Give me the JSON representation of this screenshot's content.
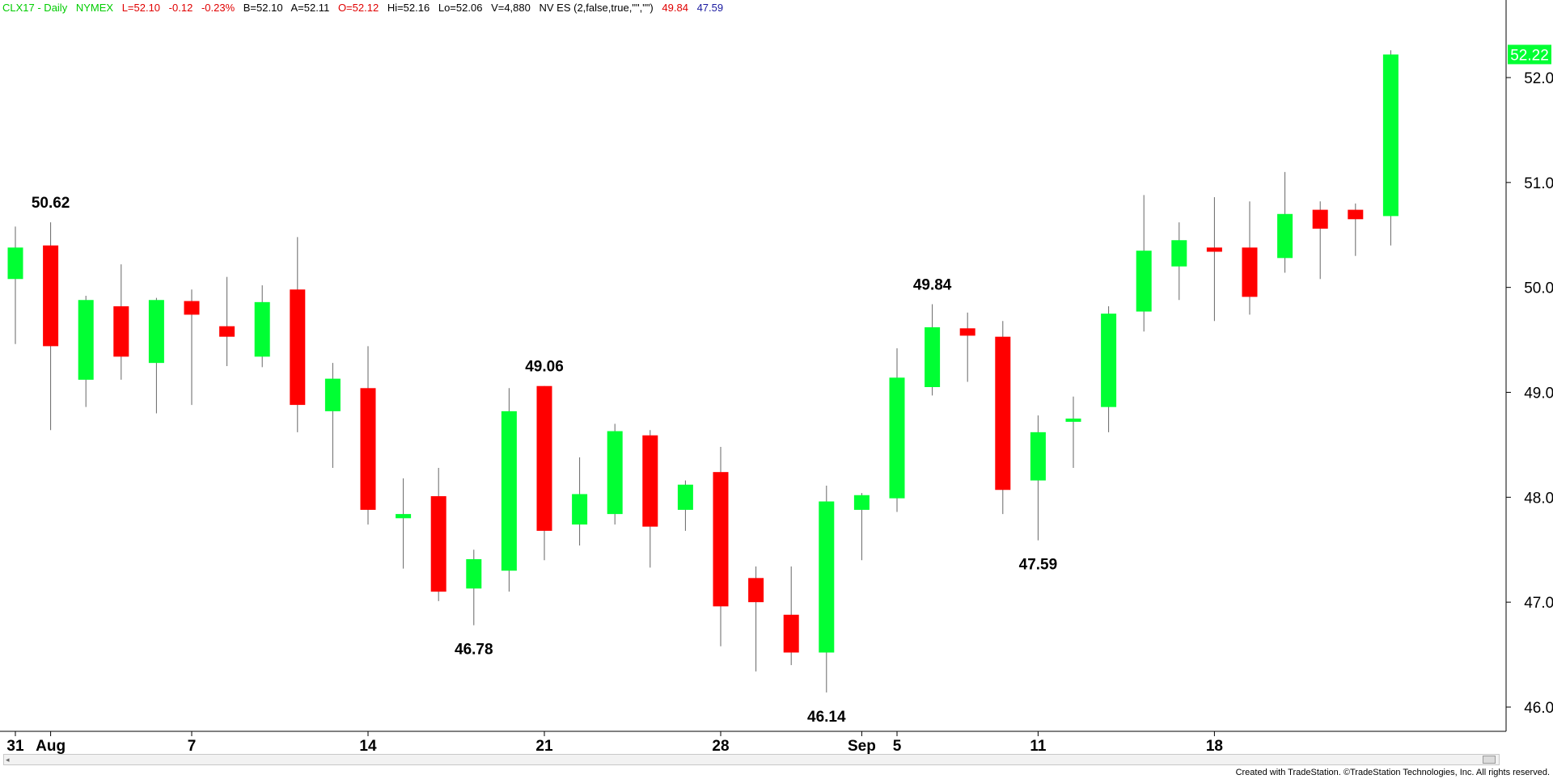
{
  "header": {
    "symbol": "CLX17 - Daily",
    "exchange": "NYMEX",
    "last": "L=52.10",
    "change": "-0.12",
    "change_pct": "-0.23%",
    "bid": "B=52.10",
    "ask": "A=52.11",
    "open": "O=52.12",
    "high": "Hi=52.16",
    "low": "Lo=52.06",
    "volume": "V=4,880",
    "indicator": "NV ES (2,false,true,\"\",\"\")",
    "ind_val1": "49.84",
    "ind_val2": "47.59"
  },
  "footer": "Created with TradeStation. ©TradeStation Technologies, Inc. All rights reserved.",
  "colors": {
    "up": "#00ff33",
    "down": "#ff0000",
    "last_price_bg": "#00ff33"
  },
  "chart_data": {
    "type": "candlestick",
    "ylim": [
      45.8,
      53.0
    ],
    "y_ticks": [
      "46.00",
      "47.00",
      "48.00",
      "49.00",
      "50.00",
      "51.00",
      "52.00"
    ],
    "last_price_label": "52.22",
    "x_tick_labels": [
      "31",
      "Aug",
      "7",
      "14",
      "21",
      "28",
      "Sep",
      "5",
      "11",
      "18"
    ],
    "candles": [
      {
        "o": 50.08,
        "h": 50.58,
        "l": 49.46,
        "c": 50.38
      },
      {
        "o": 50.4,
        "h": 50.62,
        "l": 48.64,
        "c": 49.44
      },
      {
        "o": 49.12,
        "h": 49.92,
        "l": 48.86,
        "c": 49.88
      },
      {
        "o": 49.82,
        "h": 50.22,
        "l": 49.12,
        "c": 49.34
      },
      {
        "o": 49.28,
        "h": 49.9,
        "l": 48.8,
        "c": 49.88
      },
      {
        "o": 49.87,
        "h": 49.98,
        "l": 48.88,
        "c": 49.74
      },
      {
        "o": 49.63,
        "h": 50.1,
        "l": 49.25,
        "c": 49.53
      },
      {
        "o": 49.34,
        "h": 50.02,
        "l": 49.24,
        "c": 49.86
      },
      {
        "o": 49.98,
        "h": 50.48,
        "l": 48.62,
        "c": 48.88
      },
      {
        "o": 48.82,
        "h": 49.28,
        "l": 48.28,
        "c": 49.13
      },
      {
        "o": 49.04,
        "h": 49.44,
        "l": 47.74,
        "c": 47.88
      },
      {
        "o": 47.8,
        "h": 48.18,
        "l": 47.32,
        "c": 47.84
      },
      {
        "o": 48.01,
        "h": 48.28,
        "l": 47.01,
        "c": 47.1
      },
      {
        "o": 47.13,
        "h": 47.5,
        "l": 46.78,
        "c": 47.41
      },
      {
        "o": 47.3,
        "h": 49.04,
        "l": 47.1,
        "c": 48.82
      },
      {
        "o": 49.06,
        "h": 49.06,
        "l": 47.4,
        "c": 47.68
      },
      {
        "o": 47.74,
        "h": 48.38,
        "l": 47.54,
        "c": 48.03
      },
      {
        "o": 47.84,
        "h": 48.7,
        "l": 47.74,
        "c": 48.63
      },
      {
        "o": 48.59,
        "h": 48.64,
        "l": 47.33,
        "c": 47.72
      },
      {
        "o": 47.88,
        "h": 48.16,
        "l": 47.68,
        "c": 48.12
      },
      {
        "o": 48.24,
        "h": 48.48,
        "l": 46.58,
        "c": 46.96
      },
      {
        "o": 47.23,
        "h": 47.34,
        "l": 46.34,
        "c": 47.0
      },
      {
        "o": 46.88,
        "h": 47.34,
        "l": 46.4,
        "c": 46.52
      },
      {
        "o": 46.52,
        "h": 48.11,
        "l": 46.14,
        "c": 47.96
      },
      {
        "o": 47.88,
        "h": 48.04,
        "l": 47.4,
        "c": 48.02
      },
      {
        "o": 47.99,
        "h": 49.42,
        "l": 47.86,
        "c": 49.14
      },
      {
        "o": 49.05,
        "h": 49.84,
        "l": 48.97,
        "c": 49.62
      },
      {
        "o": 49.61,
        "h": 49.76,
        "l": 49.1,
        "c": 49.54
      },
      {
        "o": 49.53,
        "h": 49.68,
        "l": 47.84,
        "c": 48.07
      },
      {
        "o": 48.16,
        "h": 48.78,
        "l": 47.59,
        "c": 48.62
      },
      {
        "o": 48.72,
        "h": 48.96,
        "l": 48.28,
        "c": 48.75
      },
      {
        "o": 48.86,
        "h": 49.82,
        "l": 48.62,
        "c": 49.75
      },
      {
        "o": 49.77,
        "h": 50.88,
        "l": 49.58,
        "c": 50.35
      },
      {
        "o": 50.2,
        "h": 50.62,
        "l": 49.88,
        "c": 50.45
      },
      {
        "o": 50.38,
        "h": 50.86,
        "l": 49.68,
        "c": 50.34
      },
      {
        "o": 50.38,
        "h": 50.82,
        "l": 49.74,
        "c": 49.91
      },
      {
        "o": 50.28,
        "h": 51.1,
        "l": 50.14,
        "c": 50.7
      },
      {
        "o": 50.74,
        "h": 50.82,
        "l": 50.08,
        "c": 50.56
      },
      {
        "o": 50.74,
        "h": 50.8,
        "l": 50.3,
        "c": 50.65
      },
      {
        "o": 50.68,
        "h": 52.26,
        "l": 50.4,
        "c": 52.22
      }
    ],
    "x_tick_candle_index": [
      0,
      1,
      5,
      10,
      15,
      20,
      24,
      25,
      29,
      34
    ],
    "annotations": [
      {
        "text": "50.62",
        "candle": 1,
        "price": 50.62,
        "pos": "above"
      },
      {
        "text": "46.78",
        "candle": 13,
        "price": 46.78,
        "pos": "below"
      },
      {
        "text": "49.06",
        "candle": 15,
        "price": 49.06,
        "pos": "above"
      },
      {
        "text": "46.14",
        "candle": 23,
        "price": 46.14,
        "pos": "below"
      },
      {
        "text": "49.84",
        "candle": 26,
        "price": 49.84,
        "pos": "above"
      },
      {
        "text": "47.59",
        "candle": 29,
        "price": 47.59,
        "pos": "below"
      }
    ]
  }
}
